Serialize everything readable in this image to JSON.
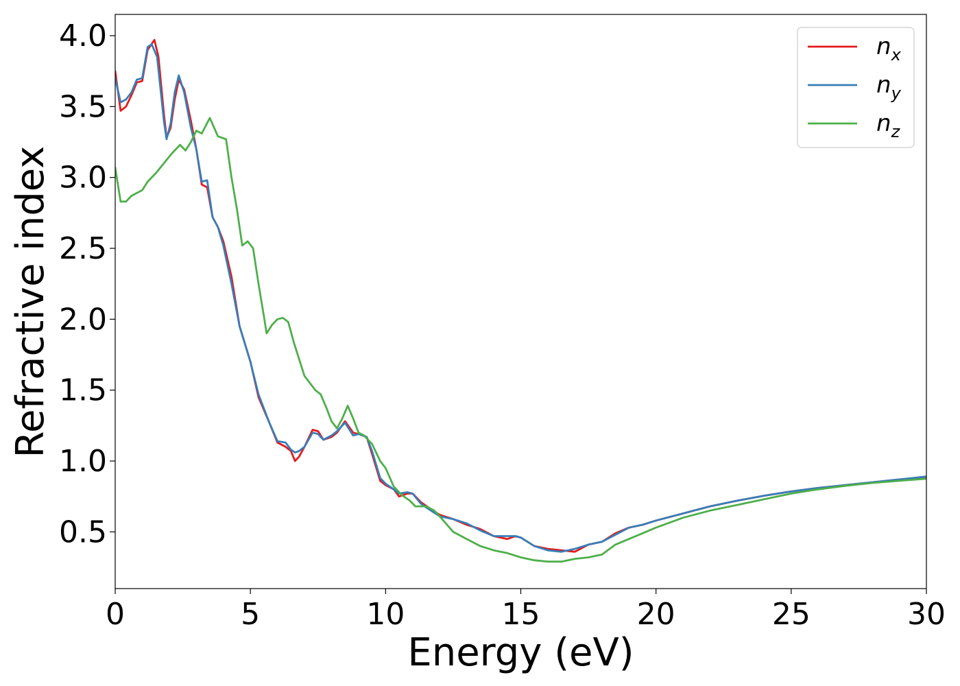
{
  "chart_data": {
    "type": "line",
    "title": "",
    "xlabel": "Energy (eV)",
    "ylabel": "Refractive index",
    "xlim": [
      0,
      30
    ],
    "ylim": [
      0.1,
      4.15
    ],
    "xticks": [
      0,
      5,
      10,
      15,
      20,
      25,
      30
    ],
    "xtick_labels": [
      "0",
      "5",
      "10",
      "15",
      "20",
      "25",
      "30"
    ],
    "yticks": [
      0.5,
      1.0,
      1.5,
      2.0,
      2.5,
      3.0,
      3.5,
      4.0
    ],
    "ytick_labels": [
      "0.5",
      "1.0",
      "1.5",
      "2.0",
      "2.5",
      "3.0",
      "3.5",
      "4.0"
    ],
    "grid": false,
    "legend_position": "top-right",
    "series": [
      {
        "name": "n",
        "subscript": "x",
        "color": "#e41a1c",
        "points": [
          [
            0,
            3.75
          ],
          [
            0.2,
            3.47
          ],
          [
            0.4,
            3.5
          ],
          [
            0.6,
            3.58
          ],
          [
            0.8,
            3.67
          ],
          [
            1.0,
            3.68
          ],
          [
            1.2,
            3.9
          ],
          [
            1.45,
            3.97
          ],
          [
            1.6,
            3.85
          ],
          [
            1.8,
            3.45
          ],
          [
            1.9,
            3.28
          ],
          [
            2.05,
            3.35
          ],
          [
            2.2,
            3.55
          ],
          [
            2.35,
            3.69
          ],
          [
            2.55,
            3.62
          ],
          [
            2.8,
            3.4
          ],
          [
            3.0,
            3.2
          ],
          [
            3.2,
            2.95
          ],
          [
            3.4,
            2.93
          ],
          [
            3.6,
            2.72
          ],
          [
            3.8,
            2.65
          ],
          [
            4.0,
            2.55
          ],
          [
            4.3,
            2.3
          ],
          [
            4.6,
            1.95
          ],
          [
            5.0,
            1.7
          ],
          [
            5.3,
            1.45
          ],
          [
            5.7,
            1.27
          ],
          [
            6.0,
            1.13
          ],
          [
            6.3,
            1.1
          ],
          [
            6.5,
            1.07
          ],
          [
            6.65,
            1.0
          ],
          [
            6.8,
            1.03
          ],
          [
            7.0,
            1.1
          ],
          [
            7.3,
            1.22
          ],
          [
            7.5,
            1.21
          ],
          [
            7.7,
            1.15
          ],
          [
            8.0,
            1.17
          ],
          [
            8.2,
            1.2
          ],
          [
            8.5,
            1.28
          ],
          [
            8.8,
            1.2
          ],
          [
            9.0,
            1.19
          ],
          [
            9.3,
            1.17
          ],
          [
            9.5,
            1.05
          ],
          [
            9.8,
            0.86
          ],
          [
            10.0,
            0.83
          ],
          [
            10.3,
            0.8
          ],
          [
            10.5,
            0.75
          ],
          [
            10.8,
            0.77
          ],
          [
            11.0,
            0.77
          ],
          [
            11.3,
            0.71
          ],
          [
            11.6,
            0.67
          ],
          [
            12.0,
            0.62
          ],
          [
            12.5,
            0.59
          ],
          [
            13.0,
            0.55
          ],
          [
            13.5,
            0.52
          ],
          [
            14.0,
            0.47
          ],
          [
            14.5,
            0.45
          ],
          [
            14.8,
            0.47
          ],
          [
            15.0,
            0.46
          ],
          [
            15.5,
            0.4
          ],
          [
            16.0,
            0.38
          ],
          [
            16.5,
            0.37
          ],
          [
            17.0,
            0.36
          ],
          [
            17.5,
            0.41
          ],
          [
            18.0,
            0.43
          ],
          [
            18.5,
            0.49
          ],
          [
            19.0,
            0.53
          ],
          [
            19.5,
            0.55
          ],
          [
            20.0,
            0.58
          ],
          [
            21.0,
            0.63
          ],
          [
            22.0,
            0.68
          ],
          [
            23.0,
            0.72
          ],
          [
            24.0,
            0.755
          ],
          [
            25.0,
            0.785
          ],
          [
            26.0,
            0.81
          ],
          [
            27.0,
            0.83
          ],
          [
            28.0,
            0.85
          ],
          [
            29.0,
            0.87
          ],
          [
            30.0,
            0.885
          ]
        ]
      },
      {
        "name": "n",
        "subscript": "y",
        "color": "#377eb8",
        "points": [
          [
            0,
            3.7
          ],
          [
            0.2,
            3.53
          ],
          [
            0.4,
            3.55
          ],
          [
            0.6,
            3.6
          ],
          [
            0.8,
            3.69
          ],
          [
            1.0,
            3.7
          ],
          [
            1.2,
            3.92
          ],
          [
            1.35,
            3.94
          ],
          [
            1.55,
            3.85
          ],
          [
            1.8,
            3.4
          ],
          [
            1.9,
            3.27
          ],
          [
            2.05,
            3.38
          ],
          [
            2.2,
            3.6
          ],
          [
            2.35,
            3.72
          ],
          [
            2.55,
            3.6
          ],
          [
            2.8,
            3.35
          ],
          [
            3.0,
            3.2
          ],
          [
            3.2,
            2.97
          ],
          [
            3.4,
            2.98
          ],
          [
            3.6,
            2.72
          ],
          [
            3.8,
            2.65
          ],
          [
            4.0,
            2.52
          ],
          [
            4.3,
            2.25
          ],
          [
            4.6,
            1.95
          ],
          [
            5.0,
            1.7
          ],
          [
            5.3,
            1.47
          ],
          [
            5.7,
            1.27
          ],
          [
            6.0,
            1.14
          ],
          [
            6.3,
            1.13
          ],
          [
            6.5,
            1.08
          ],
          [
            6.65,
            1.06
          ],
          [
            6.8,
            1.07
          ],
          [
            7.0,
            1.1
          ],
          [
            7.3,
            1.2
          ],
          [
            7.5,
            1.19
          ],
          [
            7.7,
            1.15
          ],
          [
            8.0,
            1.18
          ],
          [
            8.2,
            1.21
          ],
          [
            8.5,
            1.27
          ],
          [
            8.8,
            1.18
          ],
          [
            9.0,
            1.19
          ],
          [
            9.3,
            1.17
          ],
          [
            9.5,
            1.07
          ],
          [
            9.8,
            0.88
          ],
          [
            10.0,
            0.84
          ],
          [
            10.3,
            0.8
          ],
          [
            10.5,
            0.77
          ],
          [
            10.8,
            0.78
          ],
          [
            11.0,
            0.77
          ],
          [
            11.3,
            0.7
          ],
          [
            11.6,
            0.66
          ],
          [
            12.0,
            0.61
          ],
          [
            12.5,
            0.59
          ],
          [
            13.0,
            0.56
          ],
          [
            13.5,
            0.51
          ],
          [
            14.0,
            0.47
          ],
          [
            14.5,
            0.47
          ],
          [
            14.8,
            0.47
          ],
          [
            15.0,
            0.46
          ],
          [
            15.5,
            0.4
          ],
          [
            16.0,
            0.37
          ],
          [
            16.5,
            0.36
          ],
          [
            17.0,
            0.38
          ],
          [
            17.5,
            0.41
          ],
          [
            18.0,
            0.43
          ],
          [
            18.5,
            0.48
          ],
          [
            19.0,
            0.53
          ],
          [
            19.5,
            0.55
          ],
          [
            20.0,
            0.58
          ],
          [
            21.0,
            0.63
          ],
          [
            22.0,
            0.68
          ],
          [
            23.0,
            0.72
          ],
          [
            24.0,
            0.755
          ],
          [
            25.0,
            0.785
          ],
          [
            26.0,
            0.81
          ],
          [
            27.0,
            0.83
          ],
          [
            28.0,
            0.85
          ],
          [
            29.0,
            0.87
          ],
          [
            30.0,
            0.89
          ]
        ]
      },
      {
        "name": "n",
        "subscript": "z",
        "color": "#4daf4a",
        "points": [
          [
            0,
            3.07
          ],
          [
            0.2,
            2.83
          ],
          [
            0.4,
            2.83
          ],
          [
            0.6,
            2.87
          ],
          [
            0.8,
            2.89
          ],
          [
            1.0,
            2.91
          ],
          [
            1.2,
            2.97
          ],
          [
            1.5,
            3.03
          ],
          [
            1.8,
            3.1
          ],
          [
            2.1,
            3.17
          ],
          [
            2.4,
            3.23
          ],
          [
            2.6,
            3.19
          ],
          [
            2.8,
            3.25
          ],
          [
            3.0,
            3.33
          ],
          [
            3.2,
            3.31
          ],
          [
            3.5,
            3.42
          ],
          [
            3.8,
            3.29
          ],
          [
            4.1,
            3.27
          ],
          [
            4.3,
            3.0
          ],
          [
            4.5,
            2.78
          ],
          [
            4.7,
            2.52
          ],
          [
            4.9,
            2.55
          ],
          [
            5.1,
            2.5
          ],
          [
            5.3,
            2.25
          ],
          [
            5.5,
            2.02
          ],
          [
            5.6,
            1.9
          ],
          [
            5.8,
            1.96
          ],
          [
            6.0,
            2.0
          ],
          [
            6.2,
            2.01
          ],
          [
            6.4,
            1.98
          ],
          [
            6.6,
            1.84
          ],
          [
            6.8,
            1.72
          ],
          [
            7.0,
            1.6
          ],
          [
            7.2,
            1.55
          ],
          [
            7.4,
            1.5
          ],
          [
            7.6,
            1.47
          ],
          [
            7.8,
            1.38
          ],
          [
            8.0,
            1.28
          ],
          [
            8.2,
            1.23
          ],
          [
            8.4,
            1.3
          ],
          [
            8.6,
            1.39
          ],
          [
            8.8,
            1.3
          ],
          [
            9.0,
            1.2
          ],
          [
            9.2,
            1.18
          ],
          [
            9.5,
            1.12
          ],
          [
            9.8,
            1.0
          ],
          [
            10.0,
            0.95
          ],
          [
            10.3,
            0.82
          ],
          [
            10.6,
            0.76
          ],
          [
            10.9,
            0.72
          ],
          [
            11.1,
            0.68
          ],
          [
            11.5,
            0.68
          ],
          [
            11.8,
            0.65
          ],
          [
            12.0,
            0.61
          ],
          [
            12.5,
            0.5
          ],
          [
            13.0,
            0.45
          ],
          [
            13.5,
            0.4
          ],
          [
            14.0,
            0.37
          ],
          [
            14.5,
            0.35
          ],
          [
            15.0,
            0.32
          ],
          [
            15.5,
            0.3
          ],
          [
            16.0,
            0.29
          ],
          [
            16.5,
            0.29
          ],
          [
            17.0,
            0.31
          ],
          [
            17.5,
            0.32
          ],
          [
            18.0,
            0.34
          ],
          [
            18.5,
            0.41
          ],
          [
            19.0,
            0.45
          ],
          [
            19.5,
            0.49
          ],
          [
            20.0,
            0.53
          ],
          [
            21.0,
            0.6
          ],
          [
            22.0,
            0.65
          ],
          [
            23.0,
            0.69
          ],
          [
            24.0,
            0.73
          ],
          [
            25.0,
            0.77
          ],
          [
            26.0,
            0.8
          ],
          [
            27.0,
            0.825
          ],
          [
            28.0,
            0.845
          ],
          [
            29.0,
            0.86
          ],
          [
            30.0,
            0.875
          ]
        ]
      }
    ]
  }
}
